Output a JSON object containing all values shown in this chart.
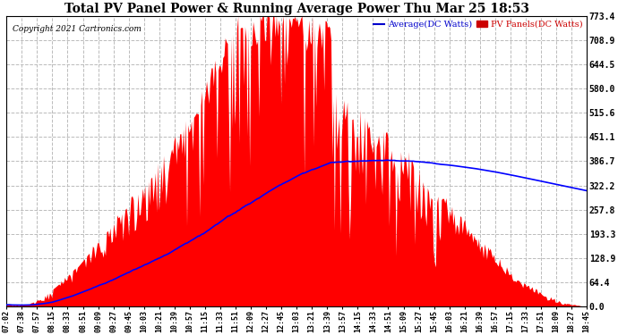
{
  "title": "Total PV Panel Power & Running Average Power Thu Mar 25 18:53",
  "copyright": "Copyright 2021 Cartronics.com",
  "legend_avg": "Average(DC Watts)",
  "legend_pv": "PV Panels(DC Watts)",
  "y_ticks": [
    0.0,
    64.4,
    128.9,
    193.3,
    257.8,
    322.2,
    386.7,
    451.1,
    515.6,
    580.0,
    644.5,
    708.9,
    773.4
  ],
  "ymax": 773.4,
  "ymin": 0.0,
  "x_labels": [
    "07:02",
    "07:38",
    "07:57",
    "08:15",
    "08:33",
    "08:51",
    "09:09",
    "09:27",
    "09:45",
    "10:03",
    "10:21",
    "10:39",
    "10:57",
    "11:15",
    "11:33",
    "11:51",
    "12:09",
    "12:27",
    "12:45",
    "13:03",
    "13:21",
    "13:39",
    "13:57",
    "14:15",
    "14:33",
    "14:51",
    "15:09",
    "15:27",
    "15:45",
    "16:03",
    "16:21",
    "16:39",
    "16:57",
    "17:15",
    "17:33",
    "17:51",
    "18:09",
    "18:27",
    "18:45"
  ],
  "background_color": "#ffffff",
  "grid_color": "#bbbbbb",
  "fill_color": "#ff0000",
  "avg_line_color": "#0000ff",
  "title_color": "#000000",
  "copyright_color": "#000000",
  "legend_avg_color": "#0000cc",
  "legend_pv_color": "#cc0000"
}
